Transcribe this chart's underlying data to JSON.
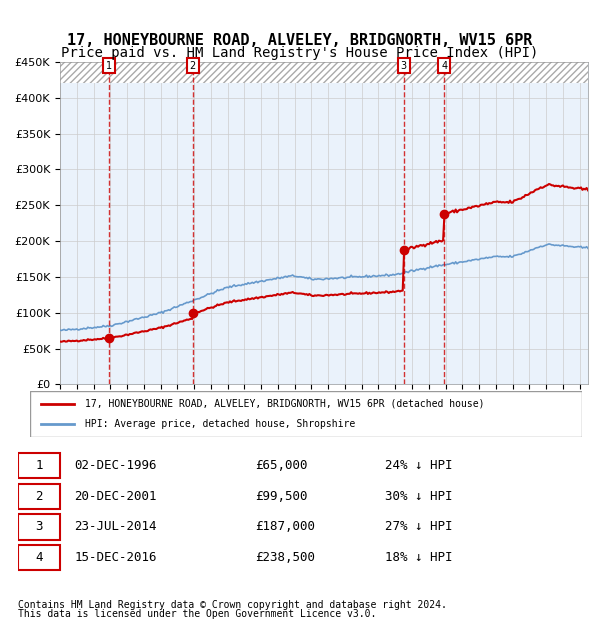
{
  "title1": "17, HONEYBOURNE ROAD, ALVELEY, BRIDGNORTH, WV15 6PR",
  "title2": "Price paid vs. HM Land Registry's House Price Index (HPI)",
  "legend_line1": "17, HONEYBOURNE ROAD, ALVELEY, BRIDGNORTH, WV15 6PR (detached house)",
  "legend_line2": "HPI: Average price, detached house, Shropshire",
  "footer1": "Contains HM Land Registry data © Crown copyright and database right 2024.",
  "footer2": "This data is licensed under the Open Government Licence v3.0.",
  "sale_dates": [
    "1996-12-02",
    "2001-12-20",
    "2014-07-23",
    "2016-12-15"
  ],
  "sale_prices": [
    65000,
    99500,
    187000,
    238500
  ],
  "sale_labels": [
    "1",
    "2",
    "3",
    "4"
  ],
  "sale_table": [
    [
      "1",
      "02-DEC-1996",
      "£65,000",
      "24% ↓ HPI"
    ],
    [
      "2",
      "20-DEC-2001",
      "£99,500",
      "30% ↓ HPI"
    ],
    [
      "3",
      "23-JUL-2014",
      "£187,000",
      "27% ↓ HPI"
    ],
    [
      "4",
      "15-DEC-2016",
      "£238,500",
      "18% ↓ HPI"
    ]
  ],
  "ylim": [
    0,
    450000
  ],
  "hatch_above": 450000,
  "red_color": "#cc0000",
  "blue_color": "#6699cc",
  "background_color": "#ffffff",
  "shaded_region_color": "#ddeeff",
  "hatch_color": "#cccccc",
  "grid_color": "#cccccc",
  "title_fontsize": 11,
  "subtitle_fontsize": 10
}
